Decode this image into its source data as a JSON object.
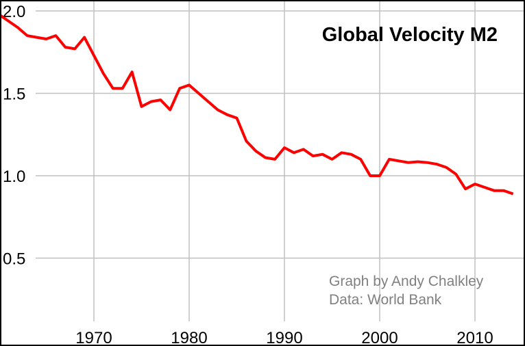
{
  "chart_data": {
    "type": "line",
    "title": "Global Velocity M2",
    "annotations": [
      "Graph by Andy Chalkley",
      "Data: World Bank"
    ],
    "xlabel": "",
    "ylabel": "",
    "xlim": [
      1960,
      2015
    ],
    "ylim": [
      0.25,
      2.05
    ],
    "xticks": [
      1970,
      1980,
      1990,
      2000,
      2010
    ],
    "yticks": [
      "0.5",
      "1.0",
      "1.5",
      "2.0"
    ],
    "grid": true,
    "line_color": "#ff0000",
    "grid_color": "#c0c0c0",
    "x": [
      1960,
      1961,
      1962,
      1963,
      1964,
      1965,
      1966,
      1967,
      1968,
      1969,
      1970,
      1971,
      1972,
      1973,
      1974,
      1975,
      1976,
      1977,
      1978,
      1979,
      1980,
      1981,
      1982,
      1983,
      1984,
      1985,
      1986,
      1987,
      1988,
      1989,
      1990,
      1991,
      1992,
      1993,
      1994,
      1995,
      1996,
      1997,
      1998,
      1999,
      2000,
      2001,
      2002,
      2003,
      2004,
      2005,
      2006,
      2007,
      2008,
      2009,
      2010,
      2011,
      2012,
      2013,
      2014
    ],
    "values": [
      1.98,
      1.94,
      1.9,
      1.85,
      1.84,
      1.83,
      1.85,
      1.78,
      1.77,
      1.84,
      1.73,
      1.62,
      1.53,
      1.53,
      1.63,
      1.42,
      1.45,
      1.46,
      1.4,
      1.53,
      1.55,
      1.5,
      1.45,
      1.4,
      1.37,
      1.35,
      1.21,
      1.15,
      1.11,
      1.1,
      1.17,
      1.14,
      1.16,
      1.12,
      1.13,
      1.1,
      1.14,
      1.13,
      1.1,
      1.0,
      1.0,
      1.1,
      1.09,
      1.08,
      1.085,
      1.08,
      1.07,
      1.05,
      1.01,
      0.92,
      0.95,
      0.93,
      0.91,
      0.91,
      0.89
    ]
  }
}
